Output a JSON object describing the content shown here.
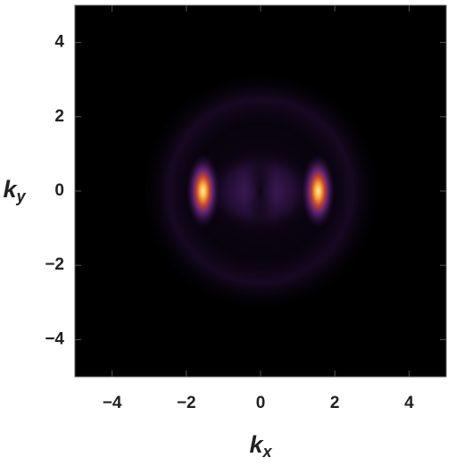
{
  "chart_data": {
    "type": "density",
    "xlabel": "k",
    "xlabel_sub": "x",
    "ylabel": "k",
    "ylabel_sub": "y",
    "xlim": [
      -5,
      5
    ],
    "ylim": [
      -5,
      5
    ],
    "xticks": [
      {
        "value": -4,
        "label": "−4"
      },
      {
        "value": -2,
        "label": "−2"
      },
      0,
      2,
      4
    ],
    "yticks": [
      {
        "value": -4,
        "label": "−4"
      },
      {
        "value": -2,
        "label": "−2"
      },
      0,
      2,
      4
    ],
    "peaks": {
      "x": [
        -1.55,
        1.55
      ],
      "y": [
        0,
        0
      ]
    },
    "background": "#000000"
  }
}
